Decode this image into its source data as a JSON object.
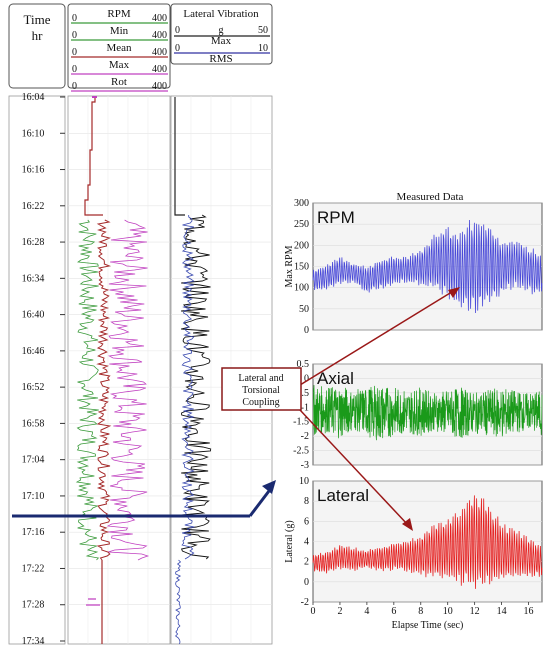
{
  "header": {
    "time_label": "Time",
    "time_unit": "hr",
    "rpm_legend": [
      {
        "label": "RPM",
        "min": "0",
        "max": "400",
        "color": "#3a9a3a"
      },
      {
        "label": "Min",
        "min": "0",
        "max": "400",
        "color": "#3a9a3a"
      },
      {
        "label": "Mean",
        "min": "0",
        "max": "400",
        "color": "#a52a2a"
      },
      {
        "label": "Max",
        "min": "0",
        "max": "400",
        "color": "#c040c0"
      },
      {
        "label": "Rot",
        "min": "0",
        "max": "400",
        "color": "#c040c0"
      }
    ],
    "vib_title": "Lateral Vibration",
    "vib_min": "0",
    "vib_unit": "g",
    "vib_max": "50",
    "vib_max_label": "Max",
    "vib_min2": "0",
    "vib_max2": "10",
    "vib_rms_label": "RMS"
  },
  "log_times": [
    "16:04",
    "16:10",
    "16:16",
    "16:22",
    "16:28",
    "16:34",
    "16:40",
    "16:46",
    "16:52",
    "16:58",
    "17:04",
    "17:10",
    "17:16",
    "17:22",
    "17:28",
    "17:34"
  ],
  "coupling_label": [
    "Lateral and",
    "Torsional",
    "Coupling"
  ],
  "chart_data": [
    {
      "type": "line",
      "title": "Measured Data",
      "panel_label": "RPM",
      "ylabel": "Max RPM",
      "ylim": [
        0,
        300
      ],
      "yticks": [
        0,
        50,
        100,
        150,
        200,
        250,
        300
      ],
      "xlim": [
        0,
        17
      ],
      "color": "#4a4ad8",
      "envelope": {
        "x": [
          0,
          1,
          2,
          3,
          4,
          5,
          6,
          7,
          8,
          9,
          10,
          11,
          12,
          13,
          14,
          15,
          16,
          17
        ],
        "upper": [
          145,
          155,
          175,
          160,
          150,
          170,
          175,
          175,
          195,
          230,
          250,
          240,
          275,
          260,
          215,
          220,
          200,
          180
        ],
        "lower": [
          90,
          95,
          105,
          110,
          85,
          95,
          105,
          110,
          100,
          90,
          70,
          40,
          35,
          50,
          80,
          95,
          85,
          80
        ]
      }
    },
    {
      "type": "line",
      "panel_label": "Axial",
      "ylabel": "",
      "ylim": [
        -3.0,
        0.5
      ],
      "yticks": [
        0.5,
        0.0,
        -0.5,
        -1.0,
        -1.5,
        -2.0,
        -2.5,
        -3.0
      ],
      "xlim": [
        0,
        17
      ],
      "color": "#1a9a1a",
      "envelope": {
        "x": [
          0,
          1,
          2,
          3,
          4,
          5,
          6,
          7,
          8,
          9,
          10,
          11,
          12,
          13,
          14,
          15,
          16,
          17
        ],
        "upper": [
          -0.2,
          -0.3,
          -0.2,
          -0.4,
          -0.3,
          -0.2,
          -0.3,
          -0.4,
          -0.3,
          -0.5,
          -0.4,
          -0.3,
          -0.5,
          -0.4,
          -0.3,
          -0.4,
          -0.5,
          -0.4
        ],
        "lower": [
          -2.0,
          -1.9,
          -2.1,
          -1.8,
          -2.0,
          -2.2,
          -2.0,
          -1.9,
          -2.0,
          -1.8,
          -2.0,
          -2.1,
          -1.9,
          -2.0,
          -2.1,
          -1.9,
          -1.8,
          -2.0
        ]
      }
    },
    {
      "type": "line",
      "panel_label": "Lateral",
      "ylabel": "Lateral (g)",
      "xlabel": "Elapse Time (sec)",
      "ylim": [
        -2,
        10
      ],
      "yticks": [
        10,
        8,
        6,
        4,
        2,
        0,
        -2
      ],
      "xlim": [
        0,
        17
      ],
      "xticks": [
        0,
        2,
        4,
        6,
        8,
        10,
        12,
        14,
        16
      ],
      "color": "#e52020",
      "envelope": {
        "x": [
          0,
          1,
          2,
          3,
          4,
          5,
          6,
          7,
          8,
          9,
          10,
          11,
          12,
          13,
          14,
          15,
          16,
          17
        ],
        "upper": [
          2.8,
          3.0,
          3.8,
          3.5,
          3.2,
          3.6,
          4.0,
          4.2,
          4.8,
          6.0,
          6.5,
          7.5,
          9.5,
          8.0,
          6.0,
          5.5,
          4.5,
          3.5
        ],
        "lower": [
          1.0,
          0.8,
          1.2,
          1.0,
          1.3,
          1.0,
          1.1,
          0.8,
          0.5,
          0.2,
          0.0,
          -0.5,
          -1.0,
          -0.5,
          0.0,
          0.3,
          0.4,
          0.5
        ]
      }
    }
  ]
}
